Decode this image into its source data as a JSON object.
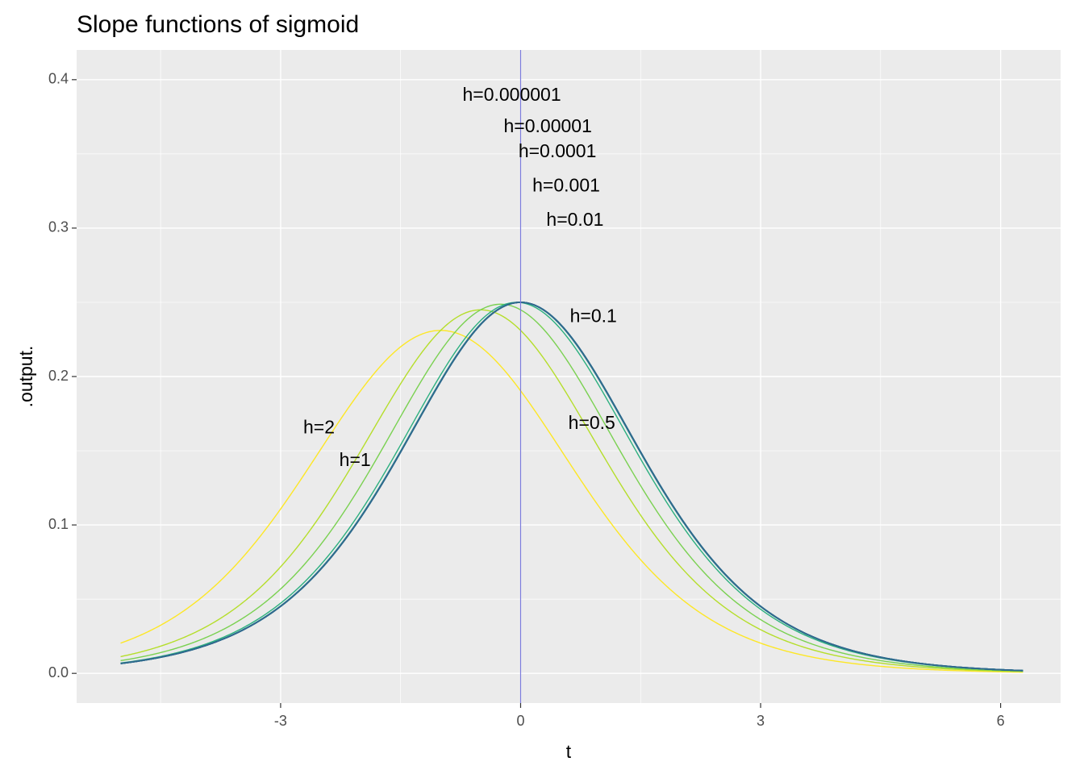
{
  "chart_data": {
    "type": "line",
    "title": "Slope functions of sigmoid",
    "xlabel": "t",
    "ylabel": ".output.",
    "xlim": [
      -5.55,
      6.75
    ],
    "ylim": [
      -0.02,
      0.42
    ],
    "x_ticks": [
      -3,
      0,
      3,
      6
    ],
    "y_ticks": [
      0.0,
      0.1,
      0.2,
      0.3,
      0.4
    ],
    "x_tick_labels": [
      "-3",
      "0",
      "3",
      "6"
    ],
    "y_tick_labels": [
      "0.0",
      "0.1",
      "0.2",
      "0.3",
      "0.4"
    ],
    "x_range": [
      -5,
      6.28
    ],
    "vline_x": 0,
    "vline_color": "#7b7bdc",
    "panel_background": "#ebebeb",
    "grid": true,
    "grid_color": "#ffffff",
    "legend": "none",
    "series": [
      {
        "name": "h=2",
        "h": 2,
        "color": "#fde725"
      },
      {
        "name": "h=1",
        "h": 1,
        "color": "#b5de2b"
      },
      {
        "name": "h=0.5",
        "h": 0.5,
        "color": "#7ad151"
      },
      {
        "name": "h=0.1",
        "h": 0.1,
        "color": "#2cb07f"
      },
      {
        "name": "h=0.01",
        "h": 0.01,
        "color": "#1f9e89"
      },
      {
        "name": "h=0.001",
        "h": 0.001,
        "color": "#21918c"
      },
      {
        "name": "h=0.0001",
        "h": 0.0001,
        "color": "#26828e"
      },
      {
        "name": "h=0.00001",
        "h": 1e-05,
        "color": "#2c728e"
      },
      {
        "name": "h=0.000001",
        "h": 1e-06,
        "color": "#31688e"
      }
    ],
    "annotations": [
      {
        "text": "h=2",
        "x": -2.52,
        "y": 0.165
      },
      {
        "text": "h=1",
        "x": -2.07,
        "y": 0.143
      },
      {
        "text": "h=0.5",
        "x": 0.89,
        "y": 0.168
      },
      {
        "text": "h=0.1",
        "x": 0.91,
        "y": 0.24
      },
      {
        "text": "h=0.01",
        "x": 0.68,
        "y": 0.305
      },
      {
        "text": "h=0.001",
        "x": 0.57,
        "y": 0.328
      },
      {
        "text": "h=0.0001",
        "x": 0.46,
        "y": 0.351
      },
      {
        "text": "h=0.00001",
        "x": 0.34,
        "y": 0.368
      },
      {
        "text": "h=0.000001",
        "x": -0.11,
        "y": 0.389
      }
    ]
  }
}
